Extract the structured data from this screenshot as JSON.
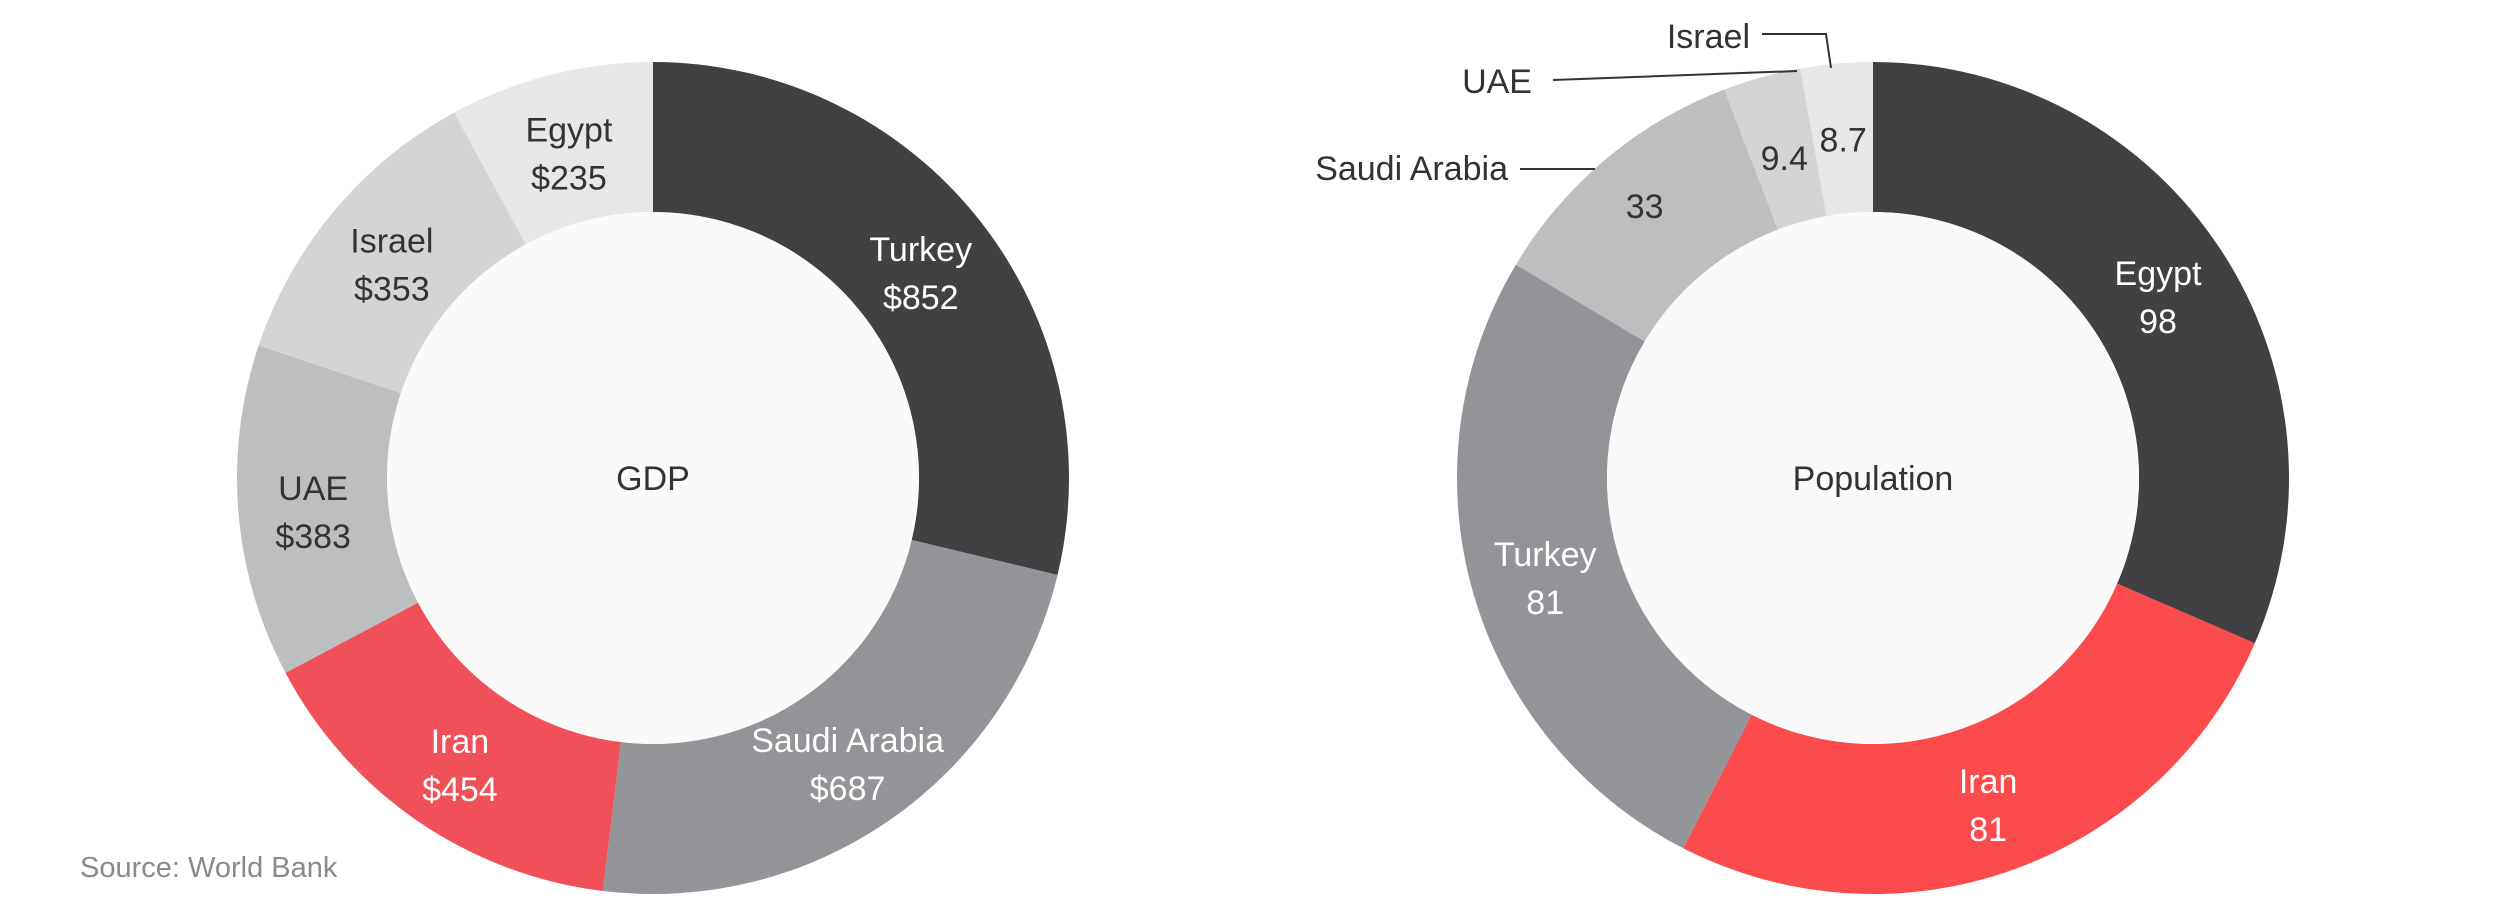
{
  "source": "Source: World Bank",
  "colors": {
    "dark": "#414143",
    "red_gdp": "#f05058",
    "red_pop": "#fb4b4d",
    "mid_gray": "#939497",
    "light_gray": "#bdbec0",
    "lighter_gray": "#d3d4d5",
    "lightest_gray": "#e7e7e8",
    "center": "#fafafa"
  },
  "chart_data": [
    {
      "type": "pie",
      "variant": "donut",
      "center_label": "GDP",
      "value_prefix": "$",
      "slices": [
        {
          "label": "Turkey",
          "value": 852,
          "display": "$852",
          "color": "#414143",
          "text_color": "#ffffff"
        },
        {
          "label": "Saudi Arabia",
          "value": 687,
          "display": "$687",
          "color": "#939497",
          "text_color": "#ffffff"
        },
        {
          "label": "Iran",
          "value": 454,
          "display": "$454",
          "color": "#f05058",
          "text_color": "#ffffff"
        },
        {
          "label": "UAE",
          "value": 383,
          "display": "$383",
          "color": "#bdbec0",
          "text_color": "#333333"
        },
        {
          "label": "Israel",
          "value": 353,
          "display": "$353",
          "color": "#d3d4d5",
          "text_color": "#333333"
        },
        {
          "label": "Egypt",
          "value": 235,
          "display": "$235",
          "color": "#e7e7e8",
          "text_color": "#333333"
        }
      ]
    },
    {
      "type": "pie",
      "variant": "donut",
      "center_label": "Population",
      "slices": [
        {
          "label": "Egypt",
          "value": 98,
          "display": "98",
          "color": "#414143",
          "text_color": "#ffffff"
        },
        {
          "label": "Iran",
          "value": 81,
          "display": "81",
          "color": "#fb4b4d",
          "text_color": "#ffffff"
        },
        {
          "label": "Turkey",
          "value": 81,
          "display": "81",
          "color": "#939497",
          "text_color": "#ffffff"
        },
        {
          "label": "Saudi Arabia",
          "value": 33,
          "display": "33",
          "color": "#bdbec0",
          "text_color": "#333333",
          "callout": true
        },
        {
          "label": "UAE",
          "value": 9.4,
          "display": "9.4",
          "color": "#d3d4d5",
          "text_color": "#333333",
          "callout": true
        },
        {
          "label": "Israel",
          "value": 8.7,
          "display": "8.7",
          "color": "#e7e7e8",
          "text_color": "#333333",
          "callout": true
        }
      ]
    }
  ]
}
